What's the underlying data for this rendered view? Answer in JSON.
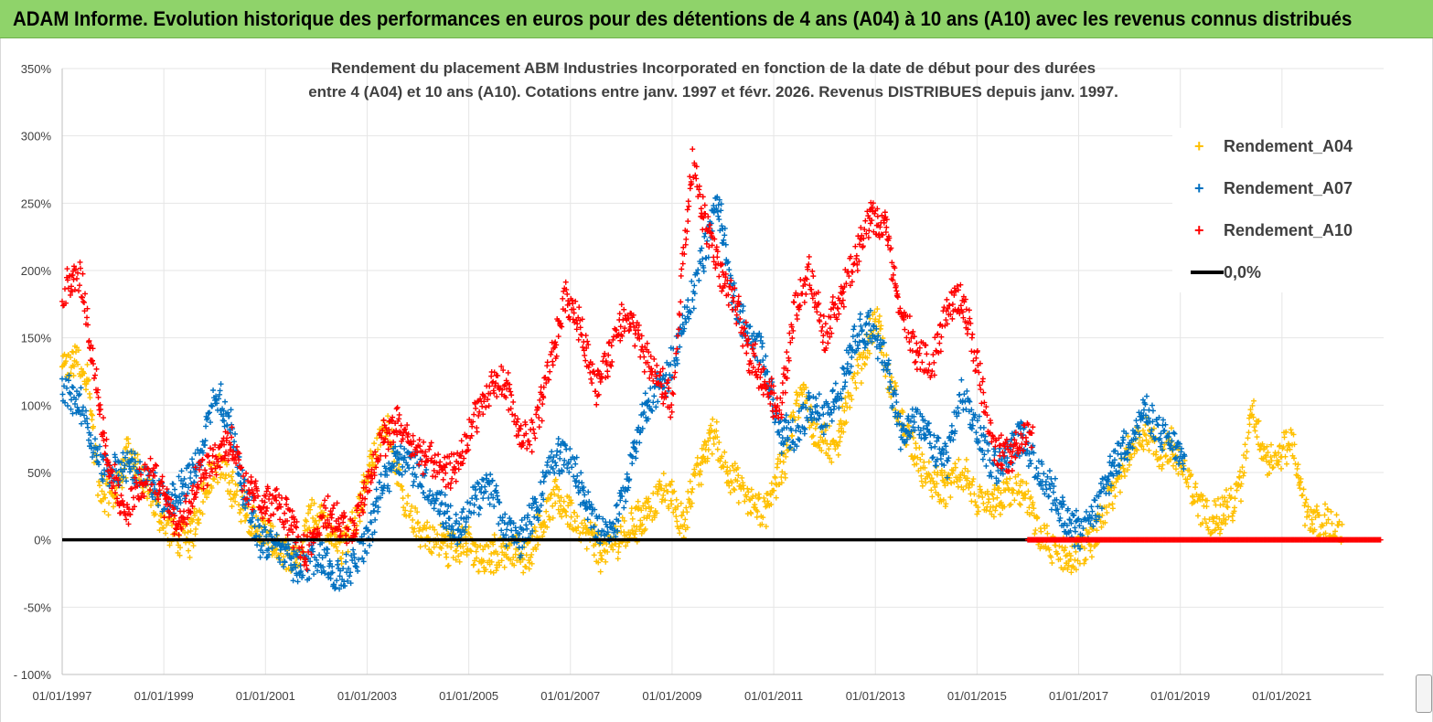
{
  "banner": {
    "title": "ADAM Informe. Evolution historique des performances en euros pour des détentions de 4 ans (A04) à 10 ans (A10) avec les revenus connus distribués"
  },
  "chart_data": {
    "type": "scatter",
    "title_line1": "Rendement du placement ABM Industries Incorporated en fonction de la date de début pour des durées",
    "title_line2": "entre 4 (A04) et 10 ans (A10).  Cotations entre janv. 1997 et févr. 2026. Revenus DISTRIBUES depuis janv. 1997.",
    "ylim": [
      -100,
      350
    ],
    "yticks": [
      -100,
      -50,
      0,
      50,
      100,
      150,
      200,
      250,
      300,
      350
    ],
    "ytick_labels": [
      "- 100%",
      "-50%",
      "0%",
      "50%",
      "100%",
      "150%",
      "200%",
      "250%",
      "300%",
      "350%"
    ],
    "xlim": [
      1997.0,
      2023.0
    ],
    "xticks": [
      1997,
      1999,
      2001,
      2003,
      2005,
      2007,
      2009,
      2011,
      2013,
      2015,
      2017,
      2019,
      2021
    ],
    "xtick_labels": [
      "01/01/1997",
      "01/01/1999",
      "01/01/2001",
      "01/01/2003",
      "01/01/2005",
      "01/01/2007",
      "01/01/2009",
      "01/01/2011",
      "01/01/2013",
      "01/01/2015",
      "01/01/2017",
      "01/01/2019",
      "01/01/2021"
    ],
    "series": [
      {
        "name": "Rendement_A04",
        "color": "#ffc000",
        "marker": "+",
        "x": [
          1997.0,
          1997.3,
          1997.5,
          1997.7,
          1998.0,
          1998.3,
          1998.6,
          1998.9,
          1999.2,
          1999.5,
          1999.8,
          2000.1,
          2000.4,
          2000.7,
          2001.0,
          2001.3,
          2001.6,
          2001.9,
          2002.2,
          2002.5,
          2002.8,
          2003.1,
          2003.4,
          2003.7,
          2004.0,
          2004.3,
          2004.6,
          2004.9,
          2005.2,
          2005.5,
          2005.8,
          2006.1,
          2006.4,
          2006.7,
          2007.0,
          2007.3,
          2007.6,
          2007.9,
          2008.2,
          2008.5,
          2008.8,
          2009.0,
          2009.2,
          2009.4,
          2009.6,
          2009.8,
          2010.0,
          2010.2,
          2010.4,
          2010.6,
          2010.8,
          2011.0,
          2011.2,
          2011.4,
          2011.6,
          2011.8,
          2012.0,
          2012.2,
          2012.4,
          2012.6,
          2012.8,
          2013.0,
          2013.2,
          2013.4,
          2013.6,
          2013.8,
          2014.0,
          2014.2,
          2014.4,
          2014.6,
          2014.8,
          2015.0,
          2015.2,
          2015.4,
          2015.6,
          2015.8,
          2016.0,
          2016.2,
          2016.4,
          2016.6,
          2016.8,
          2017.0,
          2017.2,
          2017.4,
          2017.6,
          2017.8,
          2018.0,
          2018.2,
          2018.4,
          2018.6,
          2018.8,
          2019.0,
          2019.2,
          2019.4,
          2019.6,
          2019.8,
          2020.0,
          2020.2,
          2020.4,
          2020.6,
          2020.8,
          2021.0,
          2021.2,
          2021.4,
          2021.6,
          2021.8,
          2022.0,
          2022.2
        ],
        "values": [
          125,
          135,
          120,
          40,
          30,
          65,
          40,
          20,
          5,
          0,
          40,
          55,
          35,
          15,
          5,
          -10,
          -20,
          20,
          10,
          -5,
          20,
          60,
          90,
          30,
          10,
          0,
          -5,
          0,
          -15,
          -10,
          -5,
          -15,
          10,
          30,
          20,
          5,
          -10,
          0,
          10,
          20,
          35,
          30,
          10,
          40,
          55,
          80,
          60,
          45,
          35,
          25,
          20,
          40,
          55,
          95,
          110,
          80,
          75,
          65,
          95,
          120,
          140,
          170,
          130,
          100,
          80,
          65,
          45,
          40,
          35,
          50,
          45,
          30,
          25,
          30,
          35,
          40,
          30,
          5,
          -5,
          -10,
          -15,
          -10,
          -5,
          10,
          30,
          45,
          70,
          80,
          75,
          60,
          70,
          55,
          40,
          25,
          15,
          20,
          25,
          40,
          100,
          70,
          55,
          65,
          75,
          30,
          10,
          15,
          10,
          5
        ]
      },
      {
        "name": "Rendement_A07",
        "color": "#0070c0",
        "marker": "+",
        "x": [
          1997.0,
          1997.3,
          1997.6,
          1997.9,
          1998.2,
          1998.5,
          1998.8,
          1999.1,
          1999.4,
          1999.7,
          2000.0,
          2000.3,
          2000.6,
          2000.9,
          2001.2,
          2001.5,
          2001.8,
          2002.1,
          2002.4,
          2002.7,
          2003.0,
          2003.3,
          2003.6,
          2003.9,
          2004.2,
          2004.5,
          2004.8,
          2005.1,
          2005.4,
          2005.7,
          2006.0,
          2006.3,
          2006.6,
          2006.9,
          2007.2,
          2007.5,
          2007.8,
          2008.1,
          2008.4,
          2008.7,
          2009.0,
          2009.3,
          2009.6,
          2009.9,
          2010.2,
          2010.5,
          2010.8,
          2011.1,
          2011.4,
          2011.7,
          2012.0,
          2012.3,
          2012.6,
          2012.9,
          2013.2,
          2013.5,
          2013.8,
          2014.1,
          2014.4,
          2014.7,
          2015.0,
          2015.3,
          2015.6,
          2015.9,
          2016.2,
          2016.5,
          2016.8,
          2017.1,
          2017.4,
          2017.7,
          2018.0,
          2018.3,
          2018.6,
          2018.9,
          2019.1
        ],
        "values": [
          110,
          105,
          70,
          50,
          55,
          50,
          40,
          25,
          40,
          60,
          110,
          90,
          30,
          0,
          -5,
          -15,
          -20,
          -10,
          -30,
          -20,
          0,
          40,
          65,
          55,
          40,
          20,
          5,
          30,
          40,
          10,
          0,
          20,
          55,
          65,
          40,
          10,
          0,
          40,
          90,
          110,
          130,
          170,
          210,
          250,
          180,
          150,
          140,
          80,
          75,
          100,
          90,
          110,
          150,
          160,
          130,
          80,
          90,
          70,
          60,
          110,
          80,
          55,
          60,
          80,
          50,
          35,
          10,
          5,
          30,
          55,
          75,
          95,
          80,
          70,
          50
        ]
      },
      {
        "name": "Rendement_A10",
        "color": "#ff0000",
        "marker": "+",
        "x": [
          1997.0,
          1997.2,
          1997.4,
          1997.6,
          1997.9,
          1998.2,
          1998.5,
          1998.8,
          1999.1,
          1999.4,
          1999.7,
          2000.0,
          2000.3,
          2000.6,
          2000.9,
          2001.2,
          2001.5,
          2001.8,
          2002.1,
          2002.4,
          2002.7,
          2003.0,
          2003.3,
          2003.6,
          2003.9,
          2004.2,
          2004.5,
          2004.8,
          2005.1,
          2005.4,
          2005.7,
          2006.0,
          2006.3,
          2006.6,
          2006.9,
          2007.2,
          2007.5,
          2007.8,
          2008.1,
          2008.4,
          2008.7,
          2009.0,
          2009.2,
          2009.4,
          2009.6,
          2009.8,
          2010.0,
          2010.2,
          2010.5,
          2010.8,
          2011.1,
          2011.4,
          2011.7,
          2012.0,
          2012.3,
          2012.6,
          2012.9,
          2013.2,
          2013.5,
          2013.8,
          2014.1,
          2014.4,
          2014.7,
          2015.0,
          2015.3,
          2015.6,
          2015.9,
          2016.1
        ],
        "values": [
          180,
          195,
          190,
          130,
          60,
          20,
          40,
          50,
          20,
          15,
          50,
          60,
          75,
          40,
          25,
          30,
          10,
          -10,
          20,
          15,
          5,
          40,
          75,
          85,
          70,
          60,
          50,
          55,
          90,
          110,
          120,
          75,
          80,
          130,
          180,
          160,
          110,
          140,
          170,
          140,
          120,
          100,
          200,
          280,
          240,
          220,
          190,
          180,
          140,
          120,
          90,
          170,
          200,
          150,
          180,
          210,
          240,
          230,
          170,
          140,
          130,
          170,
          180,
          130,
          70,
          60,
          75,
          80
        ]
      },
      {
        "name": "0,0%",
        "color": "#000000",
        "marker": "line",
        "x": [
          1997.0,
          2016.0
        ],
        "values": [
          0,
          0
        ]
      }
    ]
  }
}
